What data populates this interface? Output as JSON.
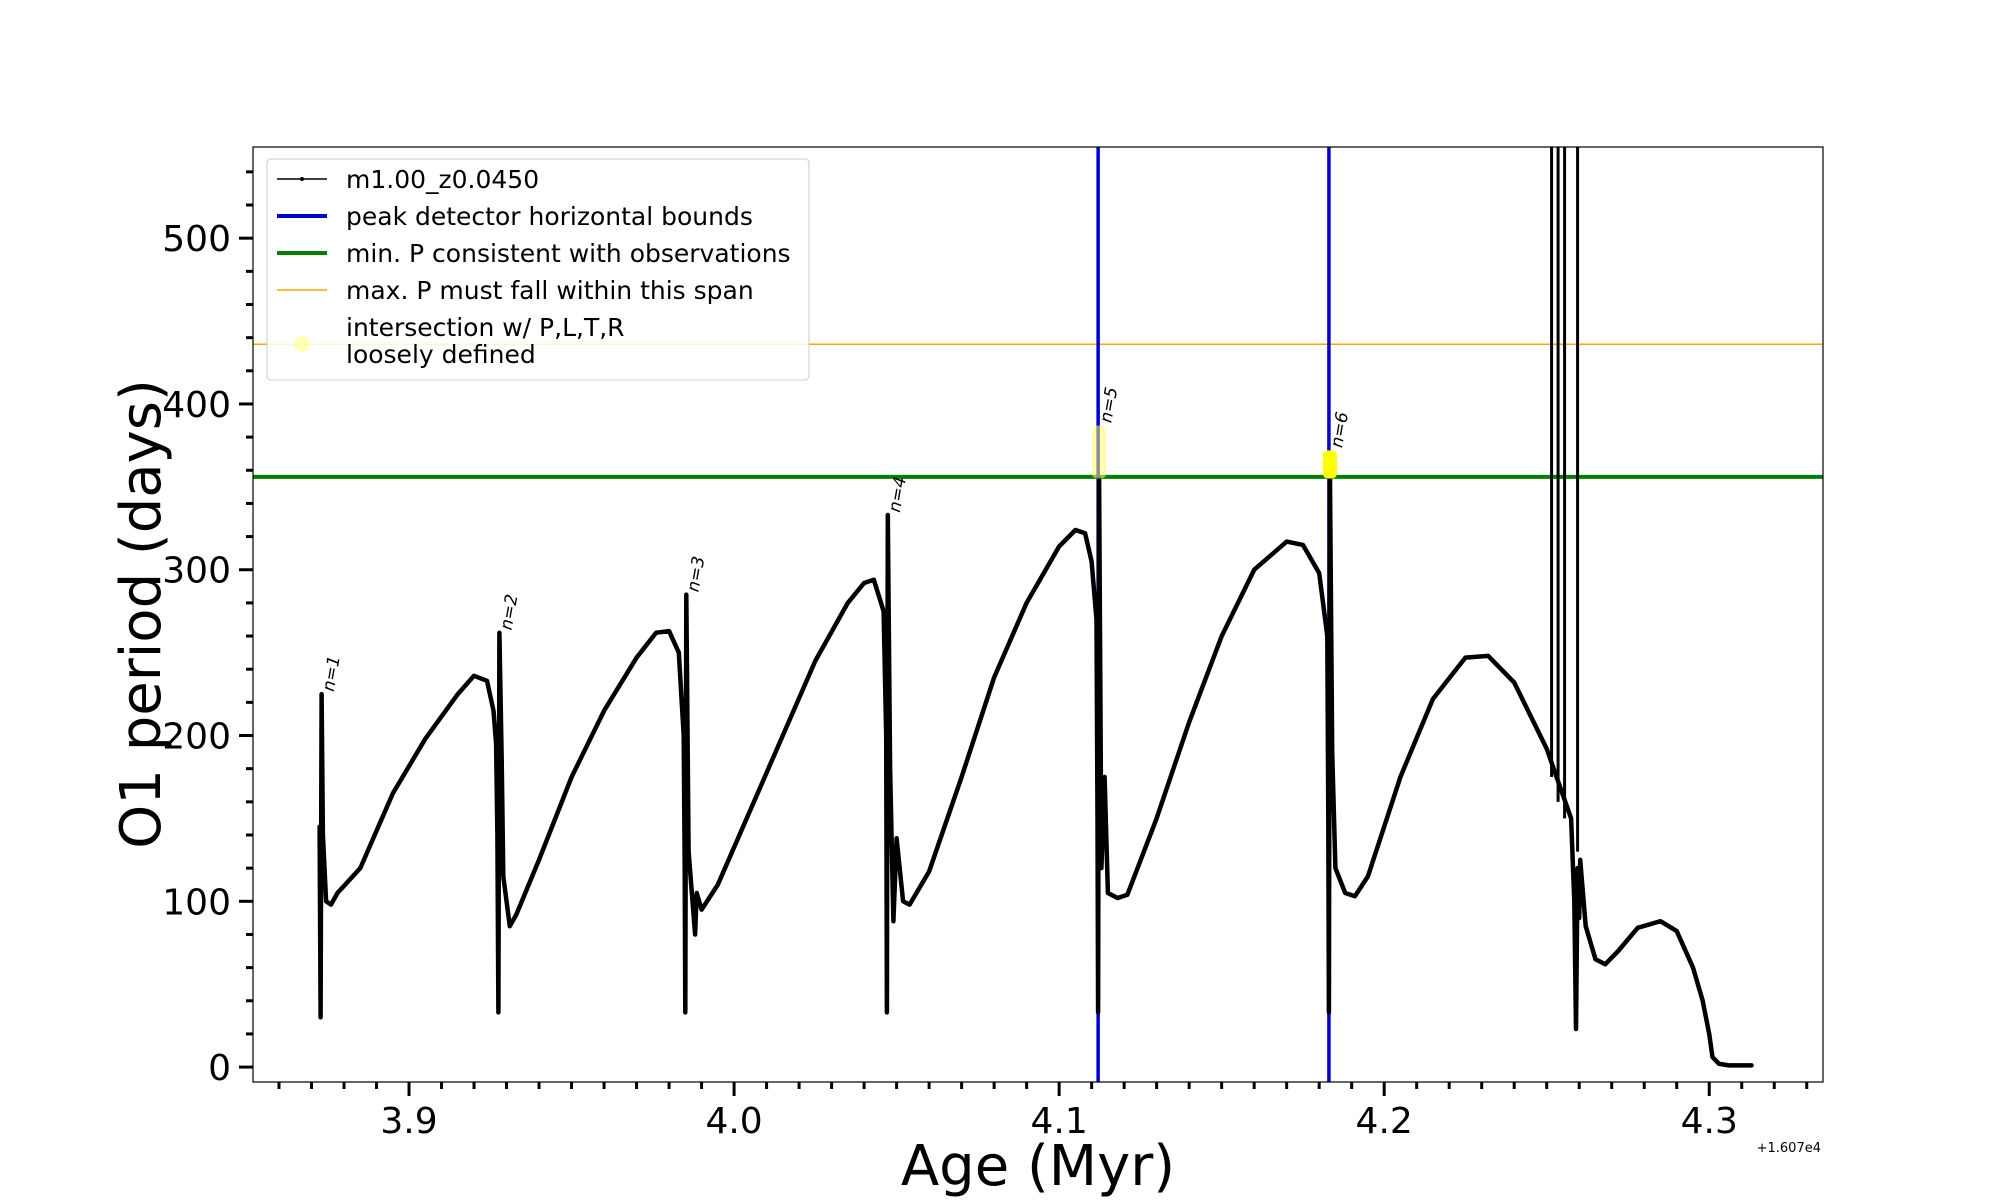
{
  "chart_data": {
    "type": "line",
    "title": "",
    "xlabel": "Age (Myr)",
    "ylabel": "O1 period (days)",
    "x_offset_label": "+1.607e4",
    "xlim": [
      3.852,
      4.335
    ],
    "ylim": [
      -9,
      555
    ],
    "xticks": [
      3.9,
      4.0,
      4.1,
      4.2,
      4.3
    ],
    "xtick_labels": [
      "3.9",
      "4.0",
      "4.1",
      "4.2",
      "4.3"
    ],
    "yticks": [
      0,
      100,
      200,
      300,
      400,
      500
    ],
    "ytick_labels": [
      "0",
      "100",
      "200",
      "300",
      "400",
      "500"
    ],
    "series": [
      {
        "name": "m1.00_z0.0450",
        "color": "#000000",
        "points": [
          [
            3.8725,
            145
          ],
          [
            3.8728,
            30
          ],
          [
            3.8731,
            225
          ],
          [
            3.8735,
            140
          ],
          [
            3.8745,
            100
          ],
          [
            3.876,
            98
          ],
          [
            3.878,
            105
          ],
          [
            3.885,
            120
          ],
          [
            3.895,
            165
          ],
          [
            3.905,
            198
          ],
          [
            3.915,
            225
          ],
          [
            3.92,
            236
          ],
          [
            3.924,
            233
          ],
          [
            3.926,
            215
          ],
          [
            3.9268,
            195
          ],
          [
            3.9272,
            140
          ],
          [
            3.9275,
            33
          ],
          [
            3.9278,
            262
          ],
          [
            3.9285,
            185
          ],
          [
            3.929,
            115
          ],
          [
            3.931,
            85
          ],
          [
            3.933,
            92
          ],
          [
            3.94,
            125
          ],
          [
            3.95,
            175
          ],
          [
            3.96,
            215
          ],
          [
            3.97,
            247
          ],
          [
            3.976,
            262
          ],
          [
            3.98,
            263
          ],
          [
            3.983,
            250
          ],
          [
            3.9845,
            200
          ],
          [
            3.9848,
            120
          ],
          [
            3.985,
            33
          ],
          [
            3.9853,
            285
          ],
          [
            3.986,
            130
          ],
          [
            3.988,
            80
          ],
          [
            3.9885,
            105
          ],
          [
            3.99,
            95
          ],
          [
            3.995,
            110
          ],
          [
            4.005,
            155
          ],
          [
            4.015,
            200
          ],
          [
            4.025,
            245
          ],
          [
            4.035,
            280
          ],
          [
            4.04,
            292
          ],
          [
            4.043,
            294
          ],
          [
            4.046,
            275
          ],
          [
            4.0468,
            200
          ],
          [
            4.047,
            33
          ],
          [
            4.0473,
            333
          ],
          [
            4.048,
            180
          ],
          [
            4.049,
            88
          ],
          [
            4.05,
            138
          ],
          [
            4.052,
            100
          ],
          [
            4.054,
            98
          ],
          [
            4.06,
            118
          ],
          [
            4.07,
            175
          ],
          [
            4.08,
            235
          ],
          [
            4.09,
            280
          ],
          [
            4.1,
            314
          ],
          [
            4.105,
            324
          ],
          [
            4.108,
            322
          ],
          [
            4.11,
            305
          ],
          [
            4.1115,
            270
          ],
          [
            4.1118,
            150
          ],
          [
            4.112,
            33
          ],
          [
            4.1123,
            355
          ],
          [
            4.113,
            120
          ],
          [
            4.114,
            175
          ],
          [
            4.115,
            105
          ],
          [
            4.118,
            102
          ],
          [
            4.121,
            104
          ],
          [
            4.13,
            150
          ],
          [
            4.14,
            208
          ],
          [
            4.15,
            260
          ],
          [
            4.16,
            300
          ],
          [
            4.17,
            317
          ],
          [
            4.175,
            315
          ],
          [
            4.18,
            298
          ],
          [
            4.1825,
            260
          ],
          [
            4.1828,
            150
          ],
          [
            4.183,
            33
          ],
          [
            4.1833,
            360
          ],
          [
            4.184,
            190
          ],
          [
            4.185,
            120
          ],
          [
            4.188,
            105
          ],
          [
            4.191,
            103
          ],
          [
            4.195,
            115
          ],
          [
            4.205,
            175
          ],
          [
            4.215,
            222
          ],
          [
            4.225,
            247
          ],
          [
            4.232,
            248
          ],
          [
            4.24,
            232
          ],
          [
            4.25,
            192
          ],
          [
            4.2575,
            150
          ],
          [
            4.2585,
            100
          ],
          [
            4.259,
            23
          ],
          [
            4.2595,
            120
          ],
          [
            4.26,
            90
          ],
          [
            4.2603,
            125
          ],
          [
            4.262,
            85
          ],
          [
            4.265,
            65
          ],
          [
            4.268,
            62
          ],
          [
            4.272,
            70
          ],
          [
            4.278,
            84
          ],
          [
            4.285,
            88
          ],
          [
            4.29,
            82
          ],
          [
            4.295,
            60
          ],
          [
            4.298,
            40
          ],
          [
            4.3,
            20
          ],
          [
            4.301,
            6
          ],
          [
            4.303,
            2
          ],
          [
            4.306,
            1
          ],
          [
            4.313,
            1
          ]
        ],
        "spikes": [
          {
            "x": 4.2515,
            "y_from": 175,
            "y_to": 555
          },
          {
            "x": 4.2535,
            "y_from": 160,
            "y_to": 555
          },
          {
            "x": 4.2555,
            "y_from": 150,
            "y_to": 555
          },
          {
            "x": 4.2595,
            "y_from": 130,
            "y_to": 555
          }
        ]
      }
    ],
    "vlines": [
      {
        "name": "peak detector horizontal bounds",
        "x": 4.112,
        "color": "#0000cc"
      },
      {
        "name": "peak detector horizontal bounds",
        "x": 4.183,
        "color": "#0000cc"
      }
    ],
    "hlines": [
      {
        "name": "min. P consistent with observations",
        "y": 356,
        "color": "#008000"
      },
      {
        "name": "max. P must fall within this span",
        "y": 436,
        "color": "#ffa500"
      }
    ],
    "highlights": [
      {
        "x": 4.1123,
        "y_from": 355,
        "y_to": 387,
        "color": "#ffff66",
        "opacity": 0.55
      },
      {
        "x": 4.1833,
        "y_from": 355,
        "y_to": 372,
        "color": "#ffff00",
        "opacity": 1.0
      }
    ],
    "annotations": [
      {
        "label": "n=1",
        "x": 3.8731,
        "y": 225
      },
      {
        "label": "n=2",
        "x": 3.9278,
        "y": 262
      },
      {
        "label": "n=3",
        "x": 3.9853,
        "y": 285
      },
      {
        "label": "n=4",
        "x": 4.0473,
        "y": 333
      },
      {
        "label": "n=5",
        "x": 4.1123,
        "y": 387
      },
      {
        "label": "n=6",
        "x": 4.1833,
        "y": 372
      }
    ],
    "legend": {
      "position": "upper-left",
      "entries": [
        {
          "label": "m1.00_z0.0450",
          "style": "line-marker",
          "color": "#000000"
        },
        {
          "label": "peak detector horizontal bounds",
          "style": "line",
          "color": "#0000cc"
        },
        {
          "label": "min. P consistent with observations",
          "style": "line",
          "color": "#008000"
        },
        {
          "label": "max. P must fall within this span",
          "style": "thin-line",
          "color": "#ffa500"
        },
        {
          "label": "intersection w/ P,L,T,R",
          "label2": "loosely defined",
          "style": "marker",
          "color": "#ffff99"
        }
      ]
    }
  }
}
